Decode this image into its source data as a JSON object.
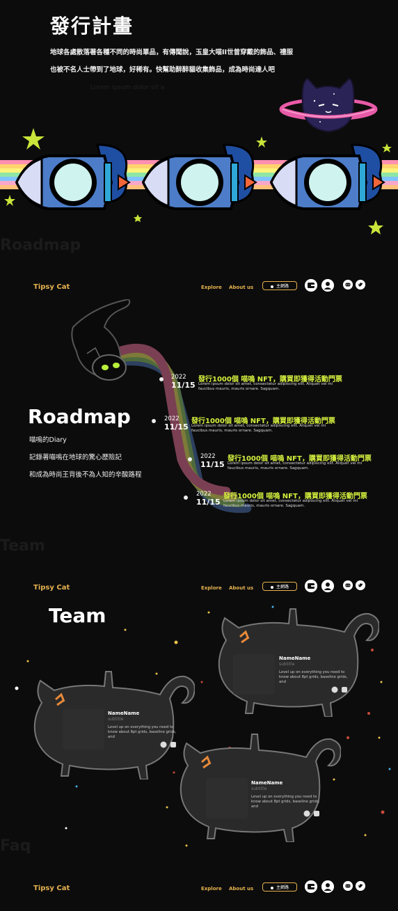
{
  "plan": {
    "title": "發行計畫",
    "line1": "地球各處散落著各種不同的時尚單品，有傳聞說，玉皇大喵II世曾穿戴的飾品、禮服",
    "line2": "也被不名人士帶到了地球，好稀有。快幫助醉醉貓收集飾品，成為時尚達人吧",
    "lorem": "Lorem ipsum dolor sit a"
  },
  "ghost_labels": {
    "roadmap": "Roadmap",
    "team": "Team",
    "faq": "Faq"
  },
  "nav": {
    "brand": "Tipsy Cat",
    "explore": "Explore",
    "about": "About us",
    "network": "主網路"
  },
  "roadmap": {
    "title": "Roadmap",
    "line1": "喵嗚的Diary",
    "line2": "記錄著喵嗚在地球的驚心歷險記",
    "line3": "和成為時尚王背後不為人知的辛酸路程",
    "events": [
      {
        "year": "2022",
        "date": "11/15",
        "title": "發行1000個 喵嗚 NFT，購買即獲得活動門票",
        "desc": "Lorem ipsum dolor sit amet, consectetur adipiscing elit. Aliquet vel mi faucibus mauris, mauris ornare. Sagquam."
      },
      {
        "year": "2022",
        "date": "11/15",
        "title": "發行1000個 喵嗚 NFT，購買即獲得活動門票",
        "desc": "Lorem ipsum dolor sit amet, consectetur adipiscing elit. Aliquet vel mi faucibus mauris, mauris ornare. Sagquam."
      },
      {
        "year": "2022",
        "date": "11/15",
        "title": "發行1000個 喵嗚 NFT，購買即獲得活動門票",
        "desc": "Lorem ipsum dolor sit amet, consectetur adipiscing elit. Aliquet vel mi faucibus mauris, mauris ornare. Sagquam."
      },
      {
        "year": "2022",
        "date": "11/15",
        "title": "發行1000個 喵嗚 NFT，購買即獲得活動門票",
        "desc": "Lorem ipsum dolor sit amet, consectetur adipiscing elit. Aliquet vel mi faucibus mauris, mauris ornare. Sagquam."
      }
    ]
  },
  "team": {
    "title": "Team",
    "members": [
      {
        "name": "NameName",
        "subtitle": "subtitle",
        "desc": "Level up on everything you need to know about 8pt grids, baseline grids, and"
      },
      {
        "name": "NameName",
        "subtitle": "subtitle",
        "desc": "Level up on everything you need to know about 8pt grids, baseline grids, and"
      },
      {
        "name": "NameName",
        "subtitle": "subtitle",
        "desc": "Level up on everything you need to know about 8pt grids, baseline grids, and"
      }
    ]
  },
  "colors": {
    "accent": "#e6b24f",
    "highlight": "#d4ef3e",
    "background": "#0c0c0c"
  }
}
